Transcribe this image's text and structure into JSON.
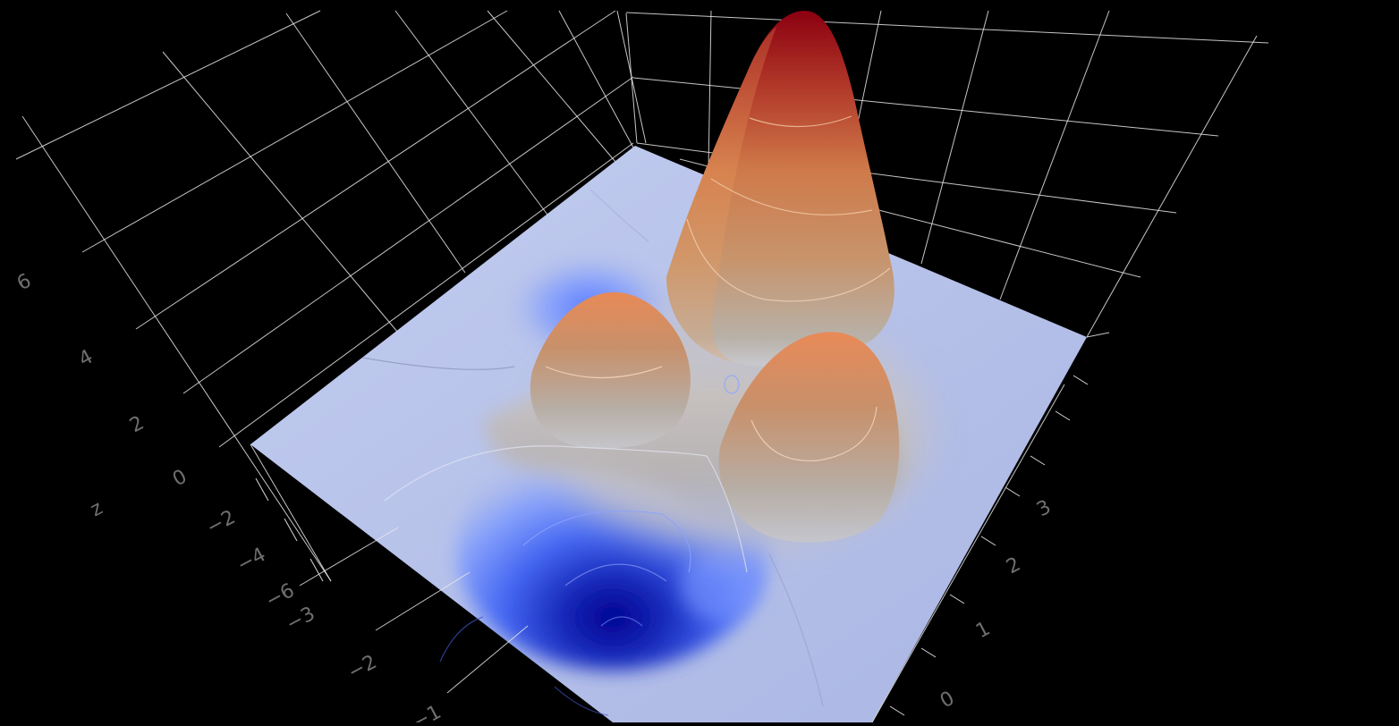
{
  "chart_data": {
    "type": "surface",
    "colorscale": [
      "#00007a",
      "#2b3fd6",
      "#6d8bff",
      "#aab7e6",
      "#c8c8c8",
      "#f5a36e",
      "#e0703f",
      "#b51c1c",
      "#8b0000"
    ],
    "background": "#000000",
    "grid": true,
    "axes": {
      "z": {
        "label": "z",
        "ticks": [
          "6",
          "4",
          "2",
          "0",
          "−2",
          "−4",
          "−6"
        ]
      },
      "x": {
        "label": "",
        "ticks": [
          "−3",
          "−2",
          "−1"
        ]
      },
      "y": {
        "label": "",
        "ticks": [
          "3",
          "2",
          "1",
          "0"
        ]
      }
    },
    "features": [
      {
        "name": "peak",
        "x": 1.0,
        "y": 2.0,
        "z": 7.0
      },
      {
        "name": "secondary-peak-left",
        "x": -1.0,
        "y": 2.5,
        "z": 3.0
      },
      {
        "name": "secondary-peak-right",
        "x": 1.5,
        "y": 0.5,
        "z": 3.0
      },
      {
        "name": "trough",
        "x": -1.0,
        "y": 0.0,
        "z": -6.0
      }
    ],
    "contour_levels": [
      -5,
      -3,
      -1,
      1,
      3,
      5
    ]
  }
}
